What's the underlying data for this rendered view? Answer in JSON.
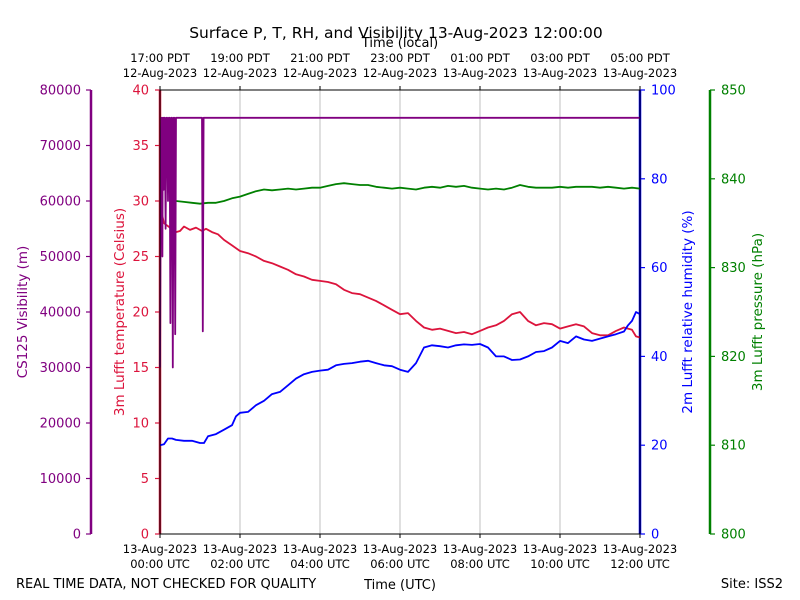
{
  "chart_data": {
    "type": "line",
    "title": "Surface P, T, RH, and Visibility 13-Aug-2023 12:00:00",
    "xlabel": "Time (UTC)",
    "xlabel_top": "Time (local)",
    "grid": "vertical",
    "x_range_hours_utc": [
      0,
      12
    ],
    "x_ticks_bottom": [
      {
        "line1": "13-Aug-2023",
        "line2": "00:00 UTC"
      },
      {
        "line1": "13-Aug-2023",
        "line2": "02:00 UTC"
      },
      {
        "line1": "13-Aug-2023",
        "line2": "04:00 UTC"
      },
      {
        "line1": "13-Aug-2023",
        "line2": "06:00 UTC"
      },
      {
        "line1": "13-Aug-2023",
        "line2": "08:00 UTC"
      },
      {
        "line1": "13-Aug-2023",
        "line2": "10:00 UTC"
      },
      {
        "line1": "13-Aug-2023",
        "line2": "12:00 UTC"
      }
    ],
    "x_ticks_top": [
      {
        "line1": "17:00 PDT",
        "line2": "12-Aug-2023"
      },
      {
        "line1": "19:00 PDT",
        "line2": "12-Aug-2023"
      },
      {
        "line1": "21:00 PDT",
        "line2": "12-Aug-2023"
      },
      {
        "line1": "23:00 PDT",
        "line2": "12-Aug-2023"
      },
      {
        "line1": "01:00 PDT",
        "line2": "13-Aug-2023"
      },
      {
        "line1": "03:00 PDT",
        "line2": "13-Aug-2023"
      },
      {
        "line1": "05:00 PDT",
        "line2": "13-Aug-2023"
      }
    ],
    "axes": {
      "visibility": {
        "label": "CS125 Visibility (m)",
        "color": "#800080",
        "range": [
          0,
          80000
        ],
        "ticks": [
          0,
          10000,
          20000,
          30000,
          40000,
          50000,
          60000,
          70000,
          80000
        ]
      },
      "temperature": {
        "label": "3m Lufft temperature (Celsius)",
        "color": "#dc143c",
        "range": [
          0,
          40
        ],
        "ticks": [
          0,
          5,
          10,
          15,
          20,
          25,
          30,
          35,
          40
        ]
      },
      "humidity": {
        "label": "2m Lufft relative humidity (%)",
        "color": "#0000ff",
        "range": [
          0,
          100
        ],
        "ticks": [
          0,
          20,
          40,
          60,
          80,
          100
        ]
      },
      "pressure": {
        "label": "3m Lufft pressure (hPa)",
        "color": "#008000",
        "range": [
          800,
          850
        ],
        "ticks": [
          800,
          810,
          820,
          830,
          840,
          850
        ]
      }
    },
    "series": [
      {
        "key": "temperature",
        "color": "#dc143c",
        "x": [
          0,
          0.05,
          0.1,
          0.25,
          0.4,
          0.5,
          0.6,
          0.75,
          0.9,
          1.05,
          1.15,
          1.3,
          1.45,
          1.6,
          1.8,
          2.0,
          2.2,
          2.4,
          2.6,
          2.8,
          3.0,
          3.2,
          3.4,
          3.6,
          3.8,
          4.0,
          4.2,
          4.4,
          4.6,
          4.8,
          5.0,
          5.2,
          5.4,
          5.6,
          5.8,
          6.0,
          6.2,
          6.4,
          6.6,
          6.8,
          7.0,
          7.2,
          7.4,
          7.6,
          7.8,
          8.0,
          8.2,
          8.4,
          8.6,
          8.8,
          9.0,
          9.2,
          9.4,
          9.6,
          9.8,
          10.0,
          10.2,
          10.4,
          10.6,
          10.8,
          11.0,
          11.2,
          11.4,
          11.6,
          11.8,
          11.9,
          12.0
        ],
        "y": [
          29.5,
          28.8,
          28.0,
          27.6,
          27.2,
          27.3,
          27.7,
          27.4,
          27.6,
          27.3,
          27.5,
          27.2,
          27.0,
          26.5,
          26.0,
          25.5,
          25.3,
          25.0,
          24.6,
          24.4,
          24.1,
          23.8,
          23.4,
          23.2,
          22.9,
          22.8,
          22.7,
          22.5,
          22.0,
          21.7,
          21.6,
          21.3,
          21.0,
          20.6,
          20.2,
          19.8,
          19.9,
          19.2,
          18.6,
          18.4,
          18.5,
          18.3,
          18.1,
          18.2,
          18.0,
          18.3,
          18.6,
          18.8,
          19.2,
          19.8,
          20.0,
          19.2,
          18.8,
          19.0,
          18.9,
          18.5,
          18.7,
          18.9,
          18.7,
          18.1,
          17.9,
          17.9,
          18.3,
          18.6,
          18.4,
          17.8,
          17.7
        ]
      },
      {
        "key": "humidity",
        "color": "#0000ff",
        "x": [
          0,
          0.1,
          0.2,
          0.3,
          0.4,
          0.6,
          0.8,
          1.0,
          1.1,
          1.2,
          1.4,
          1.6,
          1.8,
          1.9,
          2.0,
          2.2,
          2.4,
          2.6,
          2.8,
          3.0,
          3.2,
          3.4,
          3.6,
          3.8,
          4.0,
          4.2,
          4.4,
          4.6,
          4.8,
          5.0,
          5.2,
          5.4,
          5.6,
          5.8,
          6.0,
          6.2,
          6.4,
          6.6,
          6.8,
          7.0,
          7.2,
          7.4,
          7.6,
          7.8,
          8.0,
          8.2,
          8.4,
          8.6,
          8.8,
          9.0,
          9.2,
          9.4,
          9.6,
          9.8,
          10.0,
          10.2,
          10.4,
          10.6,
          10.8,
          11.0,
          11.2,
          11.4,
          11.6,
          11.7,
          11.8,
          11.9,
          12.0
        ],
        "y": [
          20.0,
          20.2,
          21.5,
          21.5,
          21.2,
          21.0,
          21.0,
          20.5,
          20.5,
          22.0,
          22.5,
          23.5,
          24.5,
          26.5,
          27.3,
          27.5,
          29.0,
          30.0,
          31.5,
          32.0,
          33.5,
          35.0,
          36.0,
          36.5,
          36.8,
          37.0,
          38.0,
          38.3,
          38.5,
          38.8,
          39.0,
          38.5,
          38.0,
          37.8,
          37.0,
          36.5,
          38.5,
          42.0,
          42.5,
          42.3,
          42.0,
          42.5,
          42.7,
          42.6,
          42.8,
          42.0,
          40.0,
          40.0,
          39.2,
          39.3,
          40.0,
          41.0,
          41.2,
          42.0,
          43.5,
          43.0,
          44.5,
          43.8,
          43.5,
          44.0,
          44.5,
          45.0,
          45.6,
          47.0,
          48.0,
          50.0,
          49.5
        ]
      },
      {
        "key": "pressure",
        "color": "#008000",
        "x": [
          0.4,
          0.6,
          0.8,
          1.0,
          1.2,
          1.4,
          1.6,
          1.8,
          2.0,
          2.2,
          2.4,
          2.6,
          2.8,
          3.0,
          3.2,
          3.4,
          3.6,
          3.8,
          4.0,
          4.2,
          4.4,
          4.6,
          4.8,
          5.0,
          5.2,
          5.4,
          5.6,
          5.8,
          6.0,
          6.2,
          6.4,
          6.6,
          6.8,
          7.0,
          7.2,
          7.4,
          7.6,
          7.8,
          8.0,
          8.2,
          8.4,
          8.6,
          8.8,
          9.0,
          9.2,
          9.4,
          9.6,
          9.8,
          10.0,
          10.2,
          10.4,
          10.6,
          10.8,
          11.0,
          11.2,
          11.4,
          11.6,
          11.8,
          12.0
        ],
        "y": [
          837.5,
          837.4,
          837.3,
          837.2,
          837.3,
          837.3,
          837.5,
          837.8,
          838.0,
          838.3,
          838.6,
          838.8,
          838.7,
          838.8,
          838.9,
          838.8,
          838.9,
          839.0,
          839.0,
          839.2,
          839.4,
          839.5,
          839.4,
          839.3,
          839.3,
          839.1,
          839.0,
          838.9,
          839.0,
          838.9,
          838.8,
          839.0,
          839.1,
          839.0,
          839.2,
          839.1,
          839.2,
          839.0,
          838.9,
          838.8,
          838.9,
          838.8,
          839.0,
          839.3,
          839.1,
          839.0,
          839.0,
          839.0,
          839.1,
          839.0,
          839.1,
          839.1,
          839.1,
          839.0,
          839.1,
          839.0,
          838.9,
          839.0,
          838.9
        ]
      },
      {
        "key": "visibility",
        "color": "#800080",
        "x": [
          0,
          0.02,
          0.04,
          0.06,
          0.07,
          0.08,
          0.09,
          0.1,
          0.12,
          0.14,
          0.16,
          0.18,
          0.2,
          0.22,
          0.24,
          0.26,
          0.28,
          0.3,
          0.32,
          0.34,
          0.36,
          0.38,
          0.4,
          0.42,
          0.44,
          0.46,
          0.48,
          0.5,
          0.52,
          0.54,
          0.56,
          0.58,
          0.6,
          0.62,
          0.64,
          0.66,
          0.68,
          0.7,
          1.0,
          1.05,
          1.07,
          1.09,
          1.11,
          1.13,
          12.0
        ],
        "y": [
          30000,
          65000,
          75000,
          50000,
          75000,
          75000,
          62000,
          75000,
          75000,
          55000,
          75000,
          75000,
          60000,
          75000,
          75000,
          38000,
          75000,
          75000,
          30000,
          75000,
          75000,
          36000,
          75000,
          75000,
          75000,
          75000,
          75000,
          75000,
          75000,
          75000,
          75000,
          75000,
          75000,
          75000,
          75000,
          75000,
          75000,
          75000,
          75000,
          75000,
          36500,
          75000,
          75000,
          75000,
          75000
        ]
      }
    ]
  },
  "footer": {
    "left": "REAL TIME DATA, NOT CHECKED FOR QUALITY",
    "right": "Site: ISS2"
  }
}
